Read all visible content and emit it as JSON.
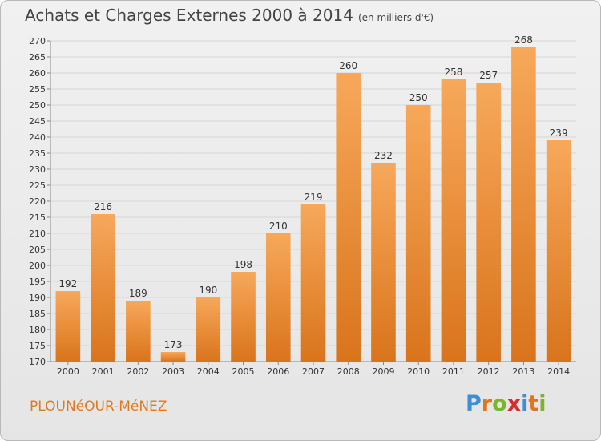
{
  "header": {
    "title": "Achats et Charges Externes 2000 à 2014",
    "subtitle": "(en milliers d'€)"
  },
  "footer": {
    "commune": "PLOUNéOUR-MéNEZ",
    "logo": {
      "letters": [
        "P",
        "r",
        "o",
        "x",
        "i",
        "t",
        "i"
      ],
      "colors": [
        "#3a8fd6",
        "#e0761a",
        "#7bb52a",
        "#d92b2b",
        "#3a8fd6",
        "#e0761a",
        "#7bb52a"
      ]
    }
  },
  "colors": {
    "bar_light": "#f7a85a",
    "bar_dark": "#d9741c",
    "grid": "#d6d6d6",
    "axis": "#888888"
  },
  "chart_data": {
    "type": "bar",
    "categories": [
      "2000",
      "2001",
      "2002",
      "2003",
      "2004",
      "2005",
      "2006",
      "2007",
      "2008",
      "2009",
      "2010",
      "2011",
      "2012",
      "2013",
      "2014"
    ],
    "values": [
      192,
      216,
      189,
      173,
      190,
      198,
      210,
      219,
      260,
      232,
      250,
      258,
      257,
      268,
      239
    ],
    "title": "Achats et Charges Externes 2000 à 2014",
    "xlabel": "",
    "ylabel": "",
    "ylim": [
      170,
      270
    ],
    "yticks": [
      170,
      175,
      180,
      185,
      190,
      195,
      200,
      205,
      210,
      215,
      220,
      225,
      230,
      235,
      240,
      245,
      250,
      255,
      260,
      265,
      270
    ],
    "grid": true,
    "data_labels": true
  }
}
